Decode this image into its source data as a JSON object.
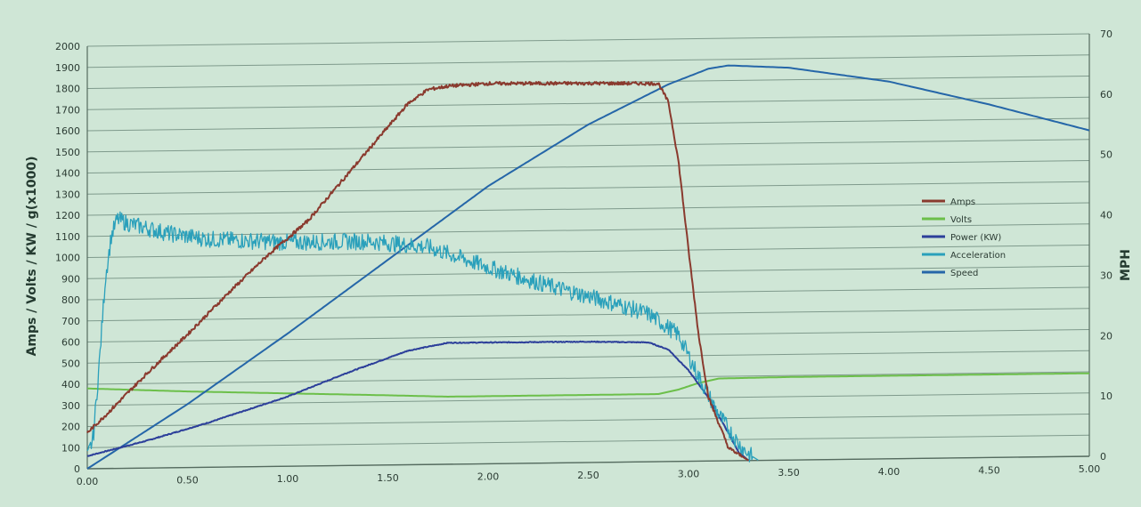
{
  "chart_data": {
    "type": "line",
    "title": "",
    "xlabel": "",
    "ylabel": "Amps / Volts / KW / g(x1000)",
    "y2label": "MPH",
    "xlim": [
      0,
      5
    ],
    "ylim": [
      0,
      2000
    ],
    "y2lim": [
      0,
      70
    ],
    "grid": true,
    "legend_position": "right-middle",
    "x_ticks": [
      "0.00",
      "0.50",
      "1.00",
      "1.50",
      "2.00",
      "2.50",
      "3.00",
      "3.50",
      "4.00",
      "4.50",
      "5.00"
    ],
    "y_ticks": [
      "0",
      "100",
      "200",
      "300",
      "400",
      "500",
      "600",
      "700",
      "800",
      "900",
      "1000",
      "1100",
      "1200",
      "1300",
      "1400",
      "1500",
      "1600",
      "1700",
      "1800",
      "1900",
      "2000"
    ],
    "y2_ticks": [
      "0",
      "10",
      "20",
      "30",
      "40",
      "50",
      "60",
      "70"
    ],
    "series": [
      {
        "name": "Amps",
        "axis": "left",
        "color": "#8a3a2e",
        "noise": 8,
        "x": [
          0,
          0.1,
          0.3,
          0.5,
          0.7,
          0.9,
          1.1,
          1.3,
          1.5,
          1.6,
          1.7,
          1.8,
          2.0,
          2.5,
          2.85,
          2.9,
          2.95,
          3.0,
          3.05,
          3.1,
          3.2,
          3.3
        ],
        "y": [
          170,
          260,
          450,
          630,
          820,
          1000,
          1160,
          1380,
          1600,
          1710,
          1775,
          1790,
          1800,
          1795,
          1790,
          1700,
          1420,
          1000,
          600,
          300,
          60,
          0
        ]
      },
      {
        "name": "Volts",
        "axis": "left",
        "color": "#6cbf4a",
        "noise": 0,
        "x": [
          0,
          0.5,
          1.0,
          1.5,
          1.8,
          2.5,
          2.85,
          2.95,
          3.05,
          3.15,
          3.5,
          5.0
        ],
        "y": [
          380,
          360,
          345,
          330,
          320,
          320,
          320,
          340,
          370,
          390,
          393,
          393
        ]
      },
      {
        "name": "Power (KW)",
        "axis": "left",
        "color": "#2c3f9a",
        "noise": 2,
        "x": [
          0,
          0.3,
          0.6,
          1.0,
          1.3,
          1.6,
          1.8,
          2.5,
          2.8,
          2.9,
          3.0,
          3.1,
          3.2,
          3.25,
          3.3
        ],
        "y": [
          60,
          130,
          210,
          330,
          440,
          540,
          575,
          572,
          565,
          530,
          430,
          300,
          130,
          40,
          0
        ]
      },
      {
        "name": "Acceleration",
        "axis": "left",
        "color": "#2aa0bb",
        "noise": 40,
        "x": [
          0,
          0.03,
          0.06,
          0.09,
          0.12,
          0.15,
          0.2,
          0.4,
          0.6,
          1.0,
          1.4,
          1.7,
          2.0,
          2.3,
          2.6,
          2.8,
          2.95,
          3.05,
          3.15,
          3.25,
          3.3,
          3.35
        ],
        "y": [
          50,
          150,
          500,
          900,
          1100,
          1180,
          1160,
          1110,
          1080,
          1060,
          1060,
          1030,
          930,
          840,
          760,
          700,
          600,
          400,
          220,
          80,
          30,
          0
        ]
      },
      {
        "name": "Speed",
        "axis": "right",
        "color": "#2566a8",
        "noise": 0,
        "x": [
          0,
          0.5,
          1.0,
          1.5,
          2.0,
          2.5,
          2.9,
          3.1,
          3.2,
          3.5,
          4.0,
          4.5,
          5.0
        ],
        "y": [
          0,
          10.5,
          22,
          34,
          46,
          56,
          62.5,
          65,
          65.5,
          65,
          62.5,
          58.5,
          54
        ]
      }
    ]
  },
  "legend": {
    "items": [
      "Amps",
      "Volts",
      "Power (KW)",
      "Acceleration",
      "Speed"
    ]
  }
}
